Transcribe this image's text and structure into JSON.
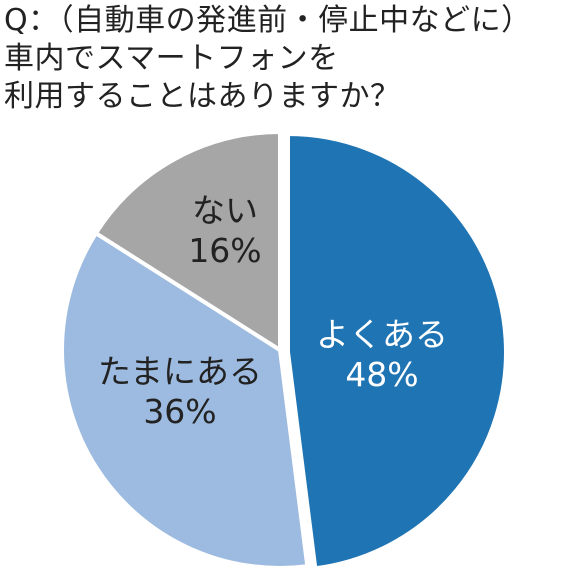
{
  "question": {
    "lines": [
      "Q：（自動車の発進前・停止中などに）",
      "車内でスマートフォンを",
      "利用することはありますか？"
    ]
  },
  "chart_data": {
    "type": "pie",
    "title": "Q：（自動車の発進前・停止中などに）車内でスマートフォンを利用することはありますか？",
    "slices": [
      {
        "label": "よくある",
        "percent_label": "48%",
        "value": 48,
        "color": "#1f74b4",
        "text_color": "#ffffff"
      },
      {
        "label": "たまにある",
        "percent_label": "36%",
        "value": 36,
        "color": "#9dbbe0",
        "text_color": "#222222"
      },
      {
        "label": "ない",
        "percent_label": "16%",
        "value": 16,
        "color": "#a6a6a6",
        "text_color": "#222222"
      }
    ],
    "start_angle_deg": 0,
    "direction": "clockwise",
    "highlighted_slice": "よくある",
    "legend": "none"
  }
}
